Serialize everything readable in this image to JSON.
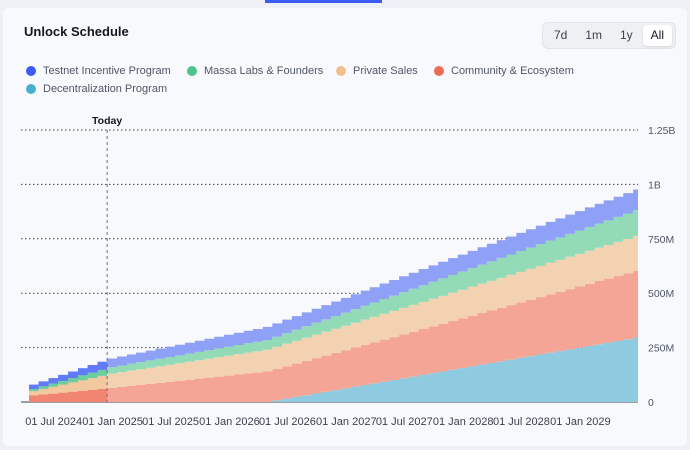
{
  "header": {
    "title": "Unlock Schedule"
  },
  "ranges": [
    {
      "label": "7d",
      "active": false
    },
    {
      "label": "1m",
      "active": false
    },
    {
      "label": "1y",
      "active": false
    },
    {
      "label": "All",
      "active": true
    }
  ],
  "chart_data": {
    "type": "area",
    "stacked": true,
    "title": "Unlock Schedule",
    "x_ticks": [
      "01 Jul 2024",
      "01 Jan 2025",
      "01 Jul 2025",
      "01 Jan 2026",
      "01 Jul 2026",
      "01 Jan 2027",
      "01 Jul 2027",
      "01 Jan 2028",
      "01 Jul 2028",
      "01 Jan 2029"
    ],
    "y_ticks": [
      "0",
      "250M",
      "500M",
      "750M",
      "1B",
      "1.25B"
    ],
    "ylim": [
      0,
      1250000000
    ],
    "today_label": "Today",
    "today_date": "2024-12-15",
    "grid": true,
    "legend_position": "top-left",
    "step_interval": "monthly",
    "x": [
      "2024-04-15",
      "2024-12-15",
      "2026-04-15",
      "2029-06-30"
    ],
    "series": [
      {
        "name": "Decentralization Program",
        "color": "#8ecbe0",
        "values": [
          0,
          0,
          0,
          300000000
        ]
      },
      {
        "name": "Community & Ecosystem",
        "color": "#f4a595",
        "values": [
          30000000,
          65000000,
          140000000,
          310000000
        ]
      },
      {
        "name": "Private Sales",
        "color": "#f3d2b1",
        "values": [
          20000000,
          65000000,
          100000000,
          160000000
        ]
      },
      {
        "name": "Massa Labs & Founders",
        "color": "#93dbb7",
        "values": [
          10000000,
          30000000,
          45000000,
          120000000
        ]
      },
      {
        "name": "Testnet Incentive Program",
        "color": "#8fa0f7",
        "values": [
          20000000,
          40000000,
          60000000,
          95000000
        ]
      }
    ],
    "legend": [
      {
        "name": "Testnet Incentive Program",
        "color": "#3b5bfd"
      },
      {
        "name": "Massa Labs & Founders",
        "color": "#4cc38a"
      },
      {
        "name": "Private Sales",
        "color": "#f1bf8e"
      },
      {
        "name": "Community & Ecosystem",
        "color": "#ec6b56"
      },
      {
        "name": "Decentralization Program",
        "color": "#48b0cf"
      }
    ]
  }
}
